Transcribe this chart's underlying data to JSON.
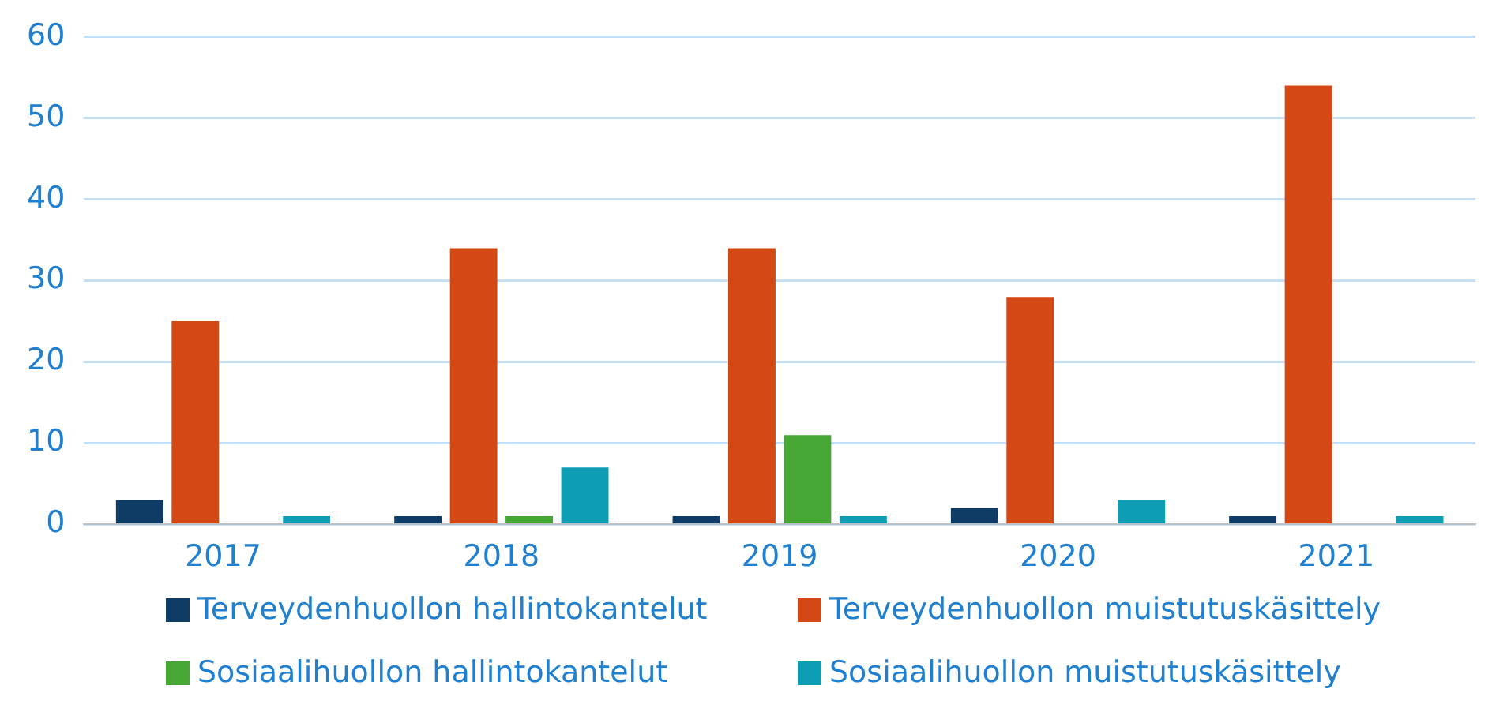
{
  "chart_data": {
    "type": "bar",
    "categories": [
      "2017",
      "2018",
      "2019",
      "2020",
      "2021"
    ],
    "series": [
      {
        "name": "Terveydenhuollon hallintokantelut",
        "color": "#0e3c64",
        "values": [
          3,
          1,
          1,
          2,
          1
        ]
      },
      {
        "name": "Terveydenhuollon muistutuskäsittely",
        "color": "#d34815",
        "values": [
          25,
          34,
          34,
          28,
          54
        ]
      },
      {
        "name": "Sosiaalihuollon hallintokantelut",
        "color": "#46a735",
        "values": [
          0,
          1,
          11,
          0,
          0
        ]
      },
      {
        "name": "Sosiaalihuollon muistutuskäsittely",
        "color": "#0d9db4",
        "values": [
          1,
          7,
          1,
          3,
          1
        ]
      }
    ],
    "ylim": [
      0,
      60
    ],
    "yticks": [
      0,
      10,
      20,
      30,
      40,
      50,
      60
    ],
    "grid": "y",
    "legend": "bottom"
  }
}
